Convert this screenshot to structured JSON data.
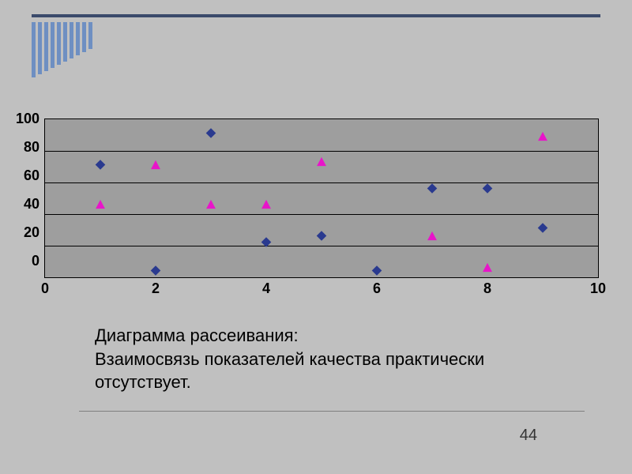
{
  "decor": {
    "top_rule_color": "#3b4a6b",
    "stripe_color": "#6e8fc2",
    "stripe_heights": [
      70,
      66,
      62,
      58,
      54,
      50,
      46,
      42,
      38,
      34
    ]
  },
  "chart": {
    "type": "scatter",
    "background_color": "#c0c0c0",
    "plot_background_color": "#9e9e9e",
    "grid_color": "#000000",
    "border_color": "#000000",
    "xlim": [
      0,
      10
    ],
    "ylim": [
      0,
      100
    ],
    "xtick_step": 2,
    "ytick_step": 20,
    "tick_labels_x": [
      "0",
      "2",
      "4",
      "6",
      "8",
      "10"
    ],
    "tick_labels_y": [
      "100",
      "80",
      "60",
      "40",
      "20",
      "0"
    ],
    "tick_fontsize": 18,
    "tick_fontweight": "bold",
    "series": [
      {
        "name": "series1",
        "marker": "diamond",
        "size": 14,
        "color": "#2a3a8f",
        "points": [
          [
            1,
            70
          ],
          [
            2,
            3
          ],
          [
            3,
            90
          ],
          [
            4,
            21
          ],
          [
            5,
            25
          ],
          [
            6,
            3
          ],
          [
            7,
            55
          ],
          [
            8,
            55
          ],
          [
            9,
            30
          ]
        ]
      },
      {
        "name": "series2",
        "marker": "triangle",
        "size": 14,
        "color": "#e815c9",
        "points": [
          [
            1,
            45
          ],
          [
            2,
            70
          ],
          [
            3,
            45
          ],
          [
            4,
            45
          ],
          [
            5,
            72
          ],
          [
            7,
            25
          ],
          [
            8,
            5
          ],
          [
            9,
            88
          ]
        ]
      }
    ]
  },
  "caption": {
    "line1": "Диаграмма рассеивания:",
    "line2": "Взаимосвязь показателей качества практически отсутствует.",
    "fontsize": 22,
    "color": "#000000"
  },
  "page_number": "44"
}
